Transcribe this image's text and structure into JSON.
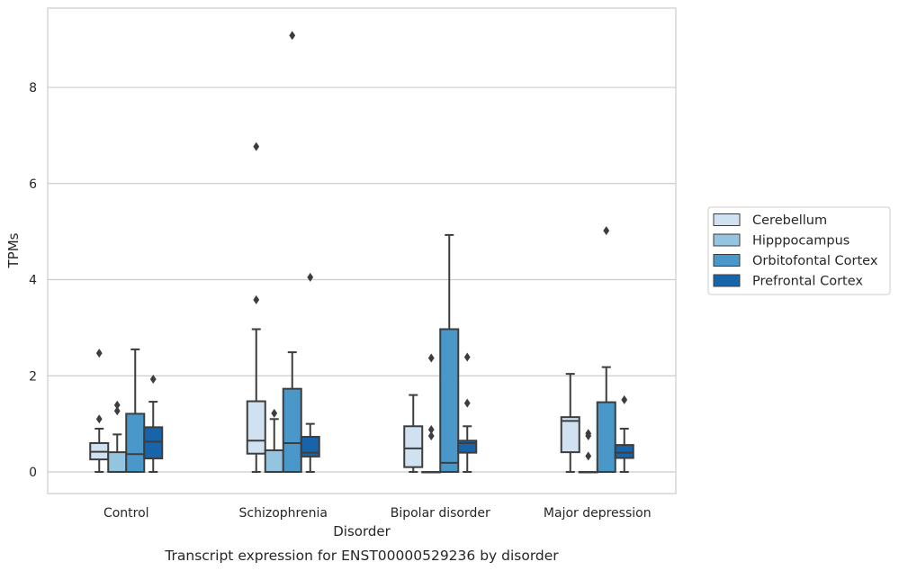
{
  "chart_data": {
    "type": "box",
    "caption": "Transcript expression for ENST00000529236 by disorder",
    "xlabel": "Disorder",
    "ylabel": "TPMs",
    "ylim": [
      -0.45,
      9.65
    ],
    "yticks": [
      0,
      2,
      4,
      6,
      8
    ],
    "grid": true,
    "legend_placement": "right",
    "categories": [
      "Control",
      "Schizophrenia",
      "Bipolar disorder",
      "Major depression"
    ],
    "series": [
      {
        "name": "Cerebellum",
        "color": "#d0e1f2",
        "boxes": [
          {
            "whisker_low": 0.0,
            "q1": 0.26,
            "median": 0.42,
            "q3": 0.6,
            "whisker_high": 0.9,
            "outliers": [
              1.1,
              2.47
            ]
          },
          {
            "whisker_low": 0.0,
            "q1": 0.38,
            "median": 0.65,
            "q3": 1.47,
            "whisker_high": 2.97,
            "outliers": [
              3.58,
              6.77
            ]
          },
          {
            "whisker_low": 0.0,
            "q1": 0.1,
            "median": 0.49,
            "q3": 0.95,
            "whisker_high": 1.6,
            "outliers": []
          },
          {
            "whisker_low": 0.0,
            "q1": 0.41,
            "median": 1.06,
            "q3": 1.14,
            "whisker_high": 2.04,
            "outliers": []
          }
        ]
      },
      {
        "name": "Hipppocampus",
        "color": "#94c4df",
        "boxes": [
          {
            "whisker_low": 0.0,
            "q1": 0.0,
            "median": 0.0,
            "q3": 0.41,
            "whisker_high": 0.78,
            "outliers": [
              1.27,
              1.39
            ]
          },
          {
            "whisker_low": 0.0,
            "q1": 0.0,
            "median": 0.0,
            "q3": 0.45,
            "whisker_high": 1.1,
            "outliers": [
              1.22
            ]
          },
          {
            "whisker_low": 0.0,
            "q1": 0.0,
            "median": 0.0,
            "q3": 0.0,
            "whisker_high": 0.0,
            "outliers": [
              0.75,
              0.88,
              2.37
            ]
          },
          {
            "whisker_low": 0.0,
            "q1": 0.0,
            "median": 0.0,
            "q3": 0.0,
            "whisker_high": 0.0,
            "outliers": [
              0.33,
              0.75,
              0.8
            ]
          }
        ]
      },
      {
        "name": "Orbitofontal Cortex",
        "color": "#4a98c9",
        "boxes": [
          {
            "whisker_low": 0.0,
            "q1": 0.0,
            "median": 0.37,
            "q3": 1.21,
            "whisker_high": 2.55,
            "outliers": []
          },
          {
            "whisker_low": 0.0,
            "q1": 0.0,
            "median": 0.6,
            "q3": 1.73,
            "whisker_high": 2.49,
            "outliers": [
              9.08
            ]
          },
          {
            "whisker_low": 0.0,
            "q1": 0.0,
            "median": 0.19,
            "q3": 2.97,
            "whisker_high": 4.93,
            "outliers": []
          },
          {
            "whisker_low": 0.0,
            "q1": 0.0,
            "median": 0.0,
            "q3": 1.45,
            "whisker_high": 2.18,
            "outliers": [
              5.02
            ]
          }
        ]
      },
      {
        "name": "Prefrontal Cortex",
        "color": "#1764ab",
        "boxes": [
          {
            "whisker_low": 0.0,
            "q1": 0.28,
            "median": 0.63,
            "q3": 0.93,
            "whisker_high": 1.46,
            "outliers": [
              1.93
            ]
          },
          {
            "whisker_low": 0.0,
            "q1": 0.32,
            "median": 0.4,
            "q3": 0.73,
            "whisker_high": 1.0,
            "outliers": [
              4.05
            ]
          },
          {
            "whisker_low": 0.0,
            "q1": 0.4,
            "median": 0.6,
            "q3": 0.65,
            "whisker_high": 0.95,
            "outliers": [
              1.43,
              2.39
            ]
          },
          {
            "whisker_low": 0.0,
            "q1": 0.29,
            "median": 0.4,
            "q3": 0.56,
            "whisker_high": 0.9,
            "outliers": [
              1.5
            ]
          }
        ]
      }
    ]
  }
}
